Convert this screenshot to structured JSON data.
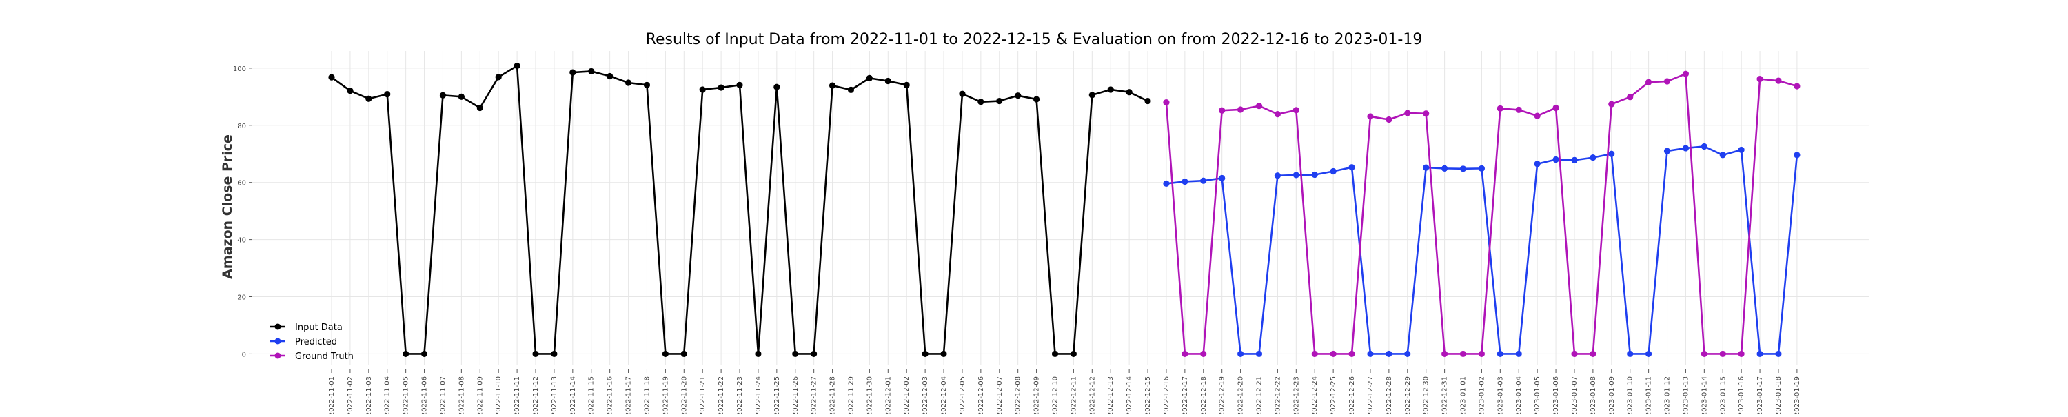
{
  "chart_data": {
    "type": "line",
    "title": "Results of Input Data from 2022-11-01 to 2022-12-15 & Evaluation on from 2022-12-16 to 2023-01-19",
    "xlabel": "",
    "ylabel": "Amazon Close Price",
    "ylim": [
      -4,
      106
    ],
    "yticks": [
      0,
      20,
      40,
      60,
      80,
      100
    ],
    "grid": true,
    "legend_position": "lower-left",
    "categories": [
      "2022-11-01",
      "2022-11-02",
      "2022-11-03",
      "2022-11-04",
      "2022-11-05",
      "2022-11-06",
      "2022-11-07",
      "2022-11-08",
      "2022-11-09",
      "2022-11-10",
      "2022-11-11",
      "2022-11-12",
      "2022-11-13",
      "2022-11-14",
      "2022-11-15",
      "2022-11-16",
      "2022-11-17",
      "2022-11-18",
      "2022-11-19",
      "2022-11-20",
      "2022-11-21",
      "2022-11-22",
      "2022-11-23",
      "2022-11-24",
      "2022-11-25",
      "2022-11-26",
      "2022-11-27",
      "2022-11-28",
      "2022-11-29",
      "2022-11-30",
      "2022-12-01",
      "2022-12-02",
      "2022-12-03",
      "2022-12-04",
      "2022-12-05",
      "2022-12-06",
      "2022-12-07",
      "2022-12-08",
      "2022-12-09",
      "2022-12-10",
      "2022-12-11",
      "2022-12-12",
      "2022-12-13",
      "2022-12-14",
      "2022-12-15",
      "2022-12-16",
      "2022-12-17",
      "2022-12-18",
      "2022-12-19",
      "2022-12-20",
      "2022-12-21",
      "2022-12-22",
      "2022-12-23",
      "2022-12-24",
      "2022-12-25",
      "2022-12-26",
      "2022-12-27",
      "2022-12-28",
      "2022-12-29",
      "2022-12-30",
      "2022-12-31",
      "2023-01-01",
      "2023-01-02",
      "2023-01-03",
      "2023-01-04",
      "2023-01-05",
      "2023-01-06",
      "2023-01-07",
      "2023-01-08",
      "2023-01-09",
      "2023-01-10",
      "2023-01-11",
      "2023-01-12",
      "2023-01-13",
      "2023-01-14",
      "2023-01-15",
      "2023-01-16",
      "2023-01-17",
      "2023-01-18",
      "2023-01-19"
    ],
    "tick_labels": [
      "2022-11-01",
      "2022-11-02",
      "2022-11-03",
      "2022-11-04",
      "2022-11-05",
      "2022-11-06",
      "2022-11-07",
      "2022-11-08",
      "2022-11-09",
      "2022-11-10",
      "2022-11-11",
      "2022-11-12",
      "2022-11-13",
      "2022-11-14",
      "2022-11-15",
      "2022-11-16",
      "2022-11-17",
      "2022-11-18",
      "2022-11-19",
      "2022-11-20",
      "2022-11-21",
      "2022-11-22",
      "2022-11-23",
      "2022-11-24",
      "2022-11-25",
      "2022-11-26",
      "2022-11-27",
      "2022-11-28",
      "2022-11-29",
      "2022-11-30",
      "2022-12-01",
      "2022-12-02",
      "2022-12-03",
      "2022-12-04",
      "2022-12-05",
      "2022-12-06",
      "2022-12-07",
      "2022-12-08",
      "2022-12-09",
      "2022-12-10",
      "2022-12-11",
      "2022-12-12",
      "2022-12-13",
      "2022-12-14",
      "2022-12-15",
      "2022-12-16",
      "2022-12-17",
      "2022-12-18",
      "2022-12-19",
      "2022-12-20",
      "2022-12-21",
      "2022-12-22",
      "2022-12-23",
      "2022-12-24",
      "2022-12-25",
      "2022-12-26",
      "2022-12-27",
      "2022-12-28",
      "2022-12-29",
      "2022-12-30",
      "2022-12-31",
      "2023-01-01",
      "2023-01-02",
      "2023-01-03",
      "2023-01-04",
      "2023-01-05",
      "2023-01-06",
      "2023-01-07",
      "2023-01-08",
      "2023-01-09",
      "2023-01-10",
      "2023-01-11",
      "2023-01-12",
      "2023-01-13",
      "2023-01-14",
      "2023-01-15",
      "2023-01-16",
      "2023-01-17",
      "2023-01-18",
      "2023-01-19"
    ],
    "series": [
      {
        "name": "Input Data",
        "color": "#000000",
        "x": [
          "2022-11-01",
          "2022-11-02",
          "2022-11-03",
          "2022-11-04",
          "2022-11-05",
          "2022-11-06",
          "2022-11-07",
          "2022-11-08",
          "2022-11-09",
          "2022-11-10",
          "2022-11-11",
          "2022-11-12",
          "2022-11-13",
          "2022-11-14",
          "2022-11-15",
          "2022-11-16",
          "2022-11-17",
          "2022-11-18",
          "2022-11-19",
          "2022-11-20",
          "2022-11-21",
          "2022-11-22",
          "2022-11-23",
          "2022-11-24",
          "2022-11-25",
          "2022-11-26",
          "2022-11-27",
          "2022-11-28",
          "2022-11-29",
          "2022-11-30",
          "2022-12-01",
          "2022-12-02",
          "2022-12-03",
          "2022-12-04",
          "2022-12-05",
          "2022-12-06",
          "2022-12-07",
          "2022-12-08",
          "2022-12-09",
          "2022-12-10",
          "2022-12-11",
          "2022-12-12",
          "2022-12-13",
          "2022-12-14",
          "2022-12-15"
        ],
        "values": [
          96.8,
          92.1,
          89.3,
          90.9,
          0,
          0,
          90.5,
          90.0,
          86.1,
          96.9,
          100.8,
          0,
          0,
          98.5,
          98.9,
          97.2,
          94.9,
          94.1,
          0,
          0,
          92.5,
          93.2,
          94.1,
          0,
          93.4,
          0,
          0,
          93.9,
          92.4,
          96.5,
          95.5,
          94.1,
          0,
          0,
          91.0,
          88.2,
          88.5,
          90.4,
          89.1,
          0,
          0,
          90.6,
          92.5,
          91.6,
          88.5
        ]
      },
      {
        "name": "Predicted",
        "color": "#1f3ff0",
        "x": [
          "2022-12-16",
          "2022-12-17",
          "2022-12-18",
          "2022-12-19",
          "2022-12-20",
          "2022-12-21",
          "2022-12-22",
          "2022-12-23",
          "2022-12-24",
          "2022-12-25",
          "2022-12-26",
          "2022-12-27",
          "2022-12-28",
          "2022-12-29",
          "2022-12-30",
          "2022-12-31",
          "2023-01-01",
          "2023-01-02",
          "2023-01-03",
          "2023-01-04",
          "2023-01-05",
          "2023-01-06",
          "2023-01-07",
          "2023-01-08",
          "2023-01-09",
          "2023-01-10",
          "2023-01-11",
          "2023-01-12",
          "2023-01-13",
          "2023-01-14",
          "2023-01-15",
          "2023-01-16",
          "2023-01-17",
          "2023-01-18",
          "2023-01-19"
        ],
        "values": [
          59.6,
          60.3,
          60.6,
          61.5,
          0,
          0,
          62.4,
          62.6,
          62.7,
          63.9,
          65.3,
          0,
          0,
          0,
          65.2,
          64.9,
          64.8,
          64.9,
          0,
          0,
          66.5,
          68.0,
          67.8,
          68.7,
          70.0,
          0,
          0,
          71.0,
          72.0,
          72.6,
          69.6,
          71.4,
          0,
          0,
          69.6
        ]
      },
      {
        "name": "Ground Truth",
        "color": "#b014b8",
        "x": [
          "2022-12-16",
          "2022-12-17",
          "2022-12-18",
          "2022-12-19",
          "2022-12-20",
          "2022-12-21",
          "2022-12-22",
          "2022-12-23",
          "2022-12-24",
          "2022-12-25",
          "2022-12-26",
          "2022-12-27",
          "2022-12-28",
          "2022-12-29",
          "2022-12-30",
          "2022-12-31",
          "2023-01-01",
          "2023-01-02",
          "2023-01-03",
          "2023-01-04",
          "2023-01-05",
          "2023-01-06",
          "2023-01-07",
          "2023-01-08",
          "2023-01-09",
          "2023-01-10",
          "2023-01-11",
          "2023-01-12",
          "2023-01-13",
          "2023-01-14",
          "2023-01-15",
          "2023-01-16",
          "2023-01-17",
          "2023-01-18",
          "2023-01-19"
        ],
        "values": [
          88.0,
          0,
          0,
          85.2,
          85.5,
          86.8,
          83.9,
          85.3,
          0,
          0,
          0,
          83.1,
          82.0,
          84.3,
          84.1,
          0,
          0,
          0,
          85.9,
          85.4,
          83.3,
          86.1,
          0,
          0,
          87.4,
          89.9,
          95.1,
          95.4,
          98.0,
          0,
          0,
          0,
          96.2,
          95.6,
          93.7
        ]
      }
    ]
  }
}
